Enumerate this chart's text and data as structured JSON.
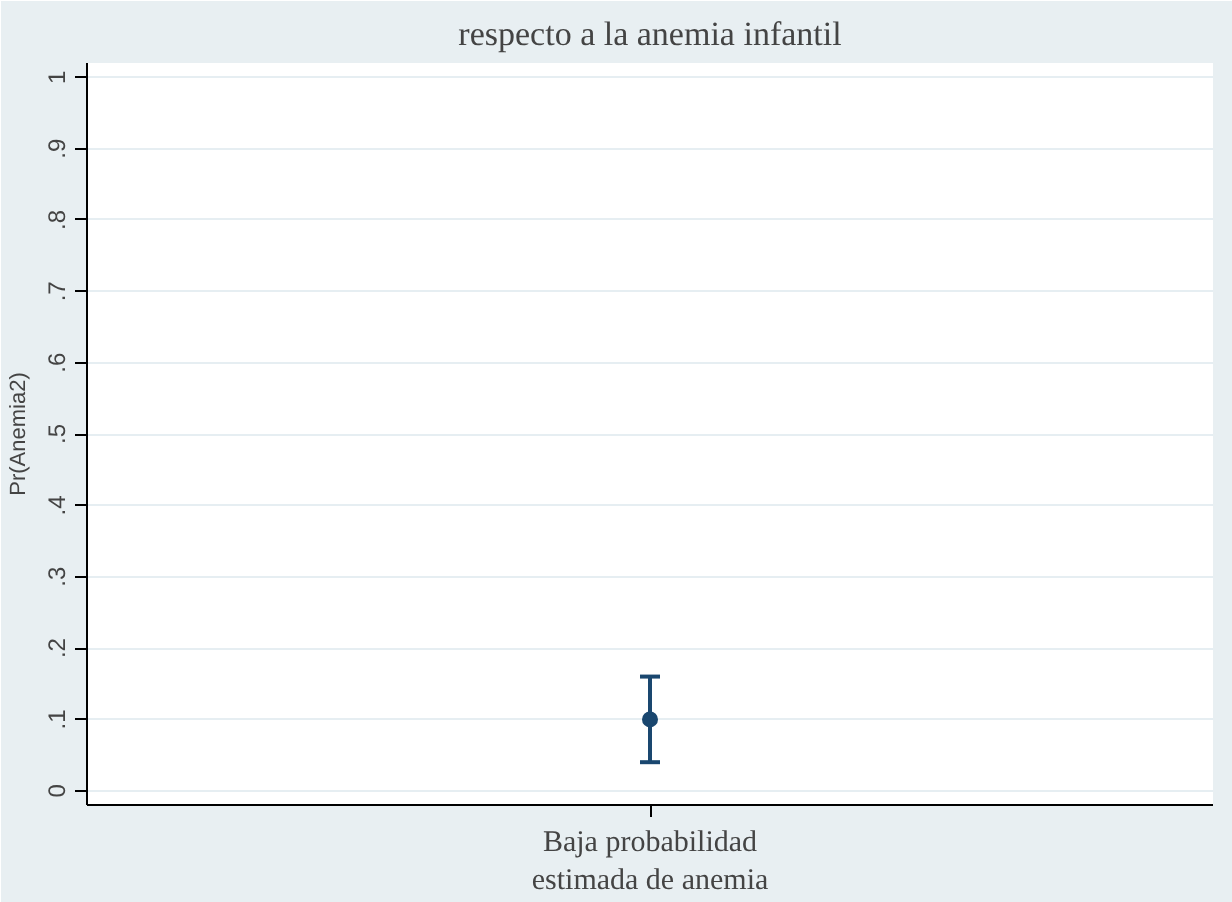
{
  "chart_data": {
    "type": "scatter",
    "title": "respecto a la anemia infantil",
    "ylabel": "Pr(Anemia2)",
    "categories": [
      "Baja probabilidad\nestimada de anemia"
    ],
    "series": [
      {
        "color": "#1a476f",
        "values": [
          0.1
        ],
        "errors": [
          [
            0.04,
            0.16
          ]
        ]
      }
    ],
    "ylim": [
      -0.02,
      1.02
    ],
    "yticks": [
      0,
      {
        "value": 0.1,
        "label": ".1"
      },
      {
        "value": 0.2,
        "label": ".2"
      },
      {
        "value": 0.3,
        "label": ".3"
      },
      {
        "value": 0.4,
        "label": ".4"
      },
      {
        "value": 0.5,
        "label": ".5"
      },
      {
        "value": 0.6,
        "label": ".6"
      },
      {
        "value": 0.7,
        "label": ".7"
      },
      {
        "value": 0.8,
        "label": ".8"
      },
      {
        "value": 0.9,
        "label": ".9"
      },
      1
    ],
    "grid": "y",
    "marker": "circle"
  }
}
